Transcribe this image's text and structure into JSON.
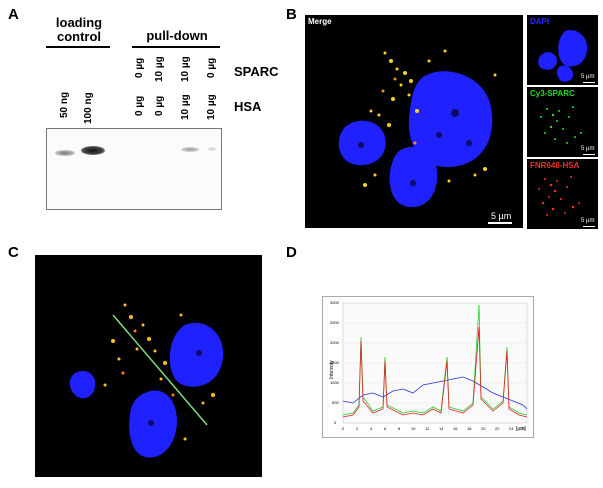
{
  "panels": {
    "a": "A",
    "b": "B",
    "c": "C",
    "d": "D"
  },
  "panel_a": {
    "loading_control": "loading\ncontrol",
    "pull_down": "pull-down",
    "sparc_label": "SPARC",
    "hsa_label": "HSA",
    "loading_lanes": [
      "50 ng",
      "100 ng"
    ],
    "sparc_row": [
      "0 µg",
      "10 µg",
      "10 µg",
      "0 µg"
    ],
    "hsa_row": [
      "0 µg",
      "0 µg",
      "10 µg",
      "10 µg"
    ]
  },
  "panel_b": {
    "merge": "Merge",
    "dapi": "DAPI",
    "cy3": "Cy3-SPARC",
    "fnr": "FNR648-HSA",
    "scale_main": "5 µm",
    "scale_small": "5 µm",
    "colors": {
      "dapi": "#1a1aff",
      "cy3": "#22dd22",
      "fnr": "#ee3322"
    }
  },
  "panel_d": {
    "ylabel": "Intensity",
    "xunit": "[µm]",
    "yticks": [
      "0",
      "500",
      "1000",
      "1500",
      "2000",
      "2500",
      "3000"
    ],
    "xticks": [
      "0",
      "2",
      "4",
      "6",
      "8",
      "10",
      "12",
      "14",
      "16",
      "18",
      "20",
      "22",
      "24",
      "26"
    ]
  }
}
